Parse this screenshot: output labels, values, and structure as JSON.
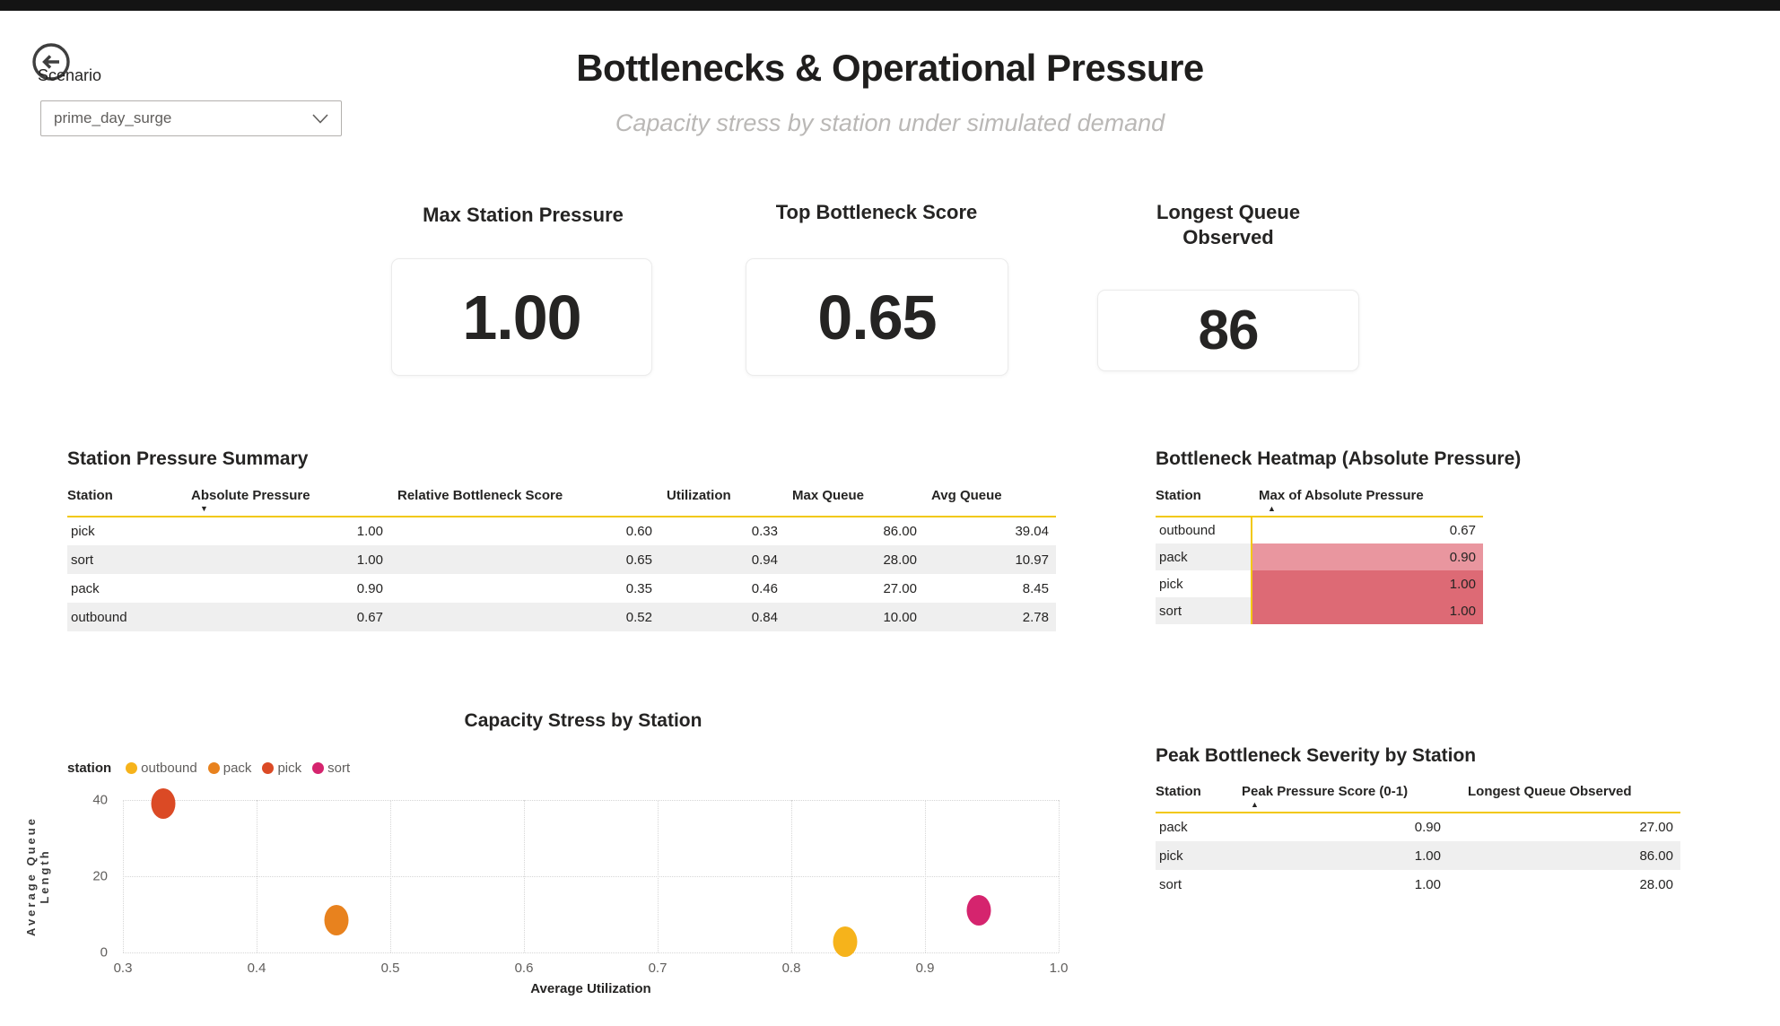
{
  "scenario": {
    "label": "Scenario",
    "value": "prime_day_surge"
  },
  "header": {
    "title": "Bottlenecks & Operational Pressure",
    "subtitle": "Capacity stress by station under simulated demand"
  },
  "icons": {
    "back": "arrow-left-circle-icon",
    "dropdown": "chevron-down-icon",
    "sort_desc": "▼",
    "sort_asc": "▲"
  },
  "accent_color": "#F2C80F",
  "kpis": [
    {
      "title": "Max Station Pressure",
      "value": "1.00"
    },
    {
      "title": "Top Bottleneck Score",
      "value": "0.65"
    },
    {
      "title": "Longest Queue Observed",
      "value": "86"
    }
  ],
  "summary_table": {
    "title": "Station Pressure Summary",
    "columns": [
      "Station",
      "Absolute Pressure",
      "Relative Bottleneck Score",
      "Utilization",
      "Max Queue",
      "Avg Queue"
    ],
    "sort_column": "Absolute Pressure",
    "sort_direction": "desc",
    "rows": [
      [
        "pick",
        "1.00",
        "0.60",
        "0.33",
        "86.00",
        "39.04"
      ],
      [
        "sort",
        "1.00",
        "0.65",
        "0.94",
        "28.00",
        "10.97"
      ],
      [
        "pack",
        "0.90",
        "0.35",
        "0.46",
        "27.00",
        "8.45"
      ],
      [
        "outbound",
        "0.67",
        "0.52",
        "0.84",
        "10.00",
        "2.78"
      ]
    ]
  },
  "heatmap_table": {
    "title": "Bottleneck Heatmap (Absolute Pressure)",
    "columns": [
      "Station",
      "Max of Absolute Pressure"
    ],
    "sort_column": "Max of Absolute Pressure",
    "sort_direction": "asc",
    "rows": [
      {
        "station": "outbound",
        "value": "0.67",
        "cell_color": "#FFFFFF"
      },
      {
        "station": "pack",
        "value": "0.90",
        "cell_color": "#E9969F"
      },
      {
        "station": "pick",
        "value": "1.00",
        "cell_color": "#DD6A75"
      },
      {
        "station": "sort",
        "value": "1.00",
        "cell_color": "#DD6A75"
      }
    ]
  },
  "peak_table": {
    "title": "Peak Bottleneck Severity by Station",
    "columns": [
      "Station",
      "Peak Pressure Score (0-1)",
      "Longest Queue Observed"
    ],
    "sort_column": "Peak Pressure Score (0-1)",
    "sort_direction": "asc",
    "rows": [
      [
        "pack",
        "0.90",
        "27.00"
      ],
      [
        "pick",
        "1.00",
        "86.00"
      ],
      [
        "sort",
        "1.00",
        "28.00"
      ]
    ]
  },
  "chart_data": {
    "type": "scatter",
    "title": "Capacity Stress by Station",
    "xlabel": "Average Utilization",
    "ylabel": "Average Queue Length",
    "legend_label": "station",
    "legend_position": "top-left",
    "grid": true,
    "xlim": [
      0.3,
      1.0
    ],
    "ylim": [
      0,
      40
    ],
    "x_ticks": [
      0.3,
      0.4,
      0.5,
      0.6,
      0.7,
      0.8,
      0.9,
      1.0
    ],
    "x_tick_labels": [
      "0.3",
      "0.4",
      "0.5",
      "0.6",
      "0.7",
      "0.8",
      "0.9",
      "1.0"
    ],
    "y_ticks": [
      0,
      20,
      40
    ],
    "y_tick_labels": [
      "0",
      "20",
      "40"
    ],
    "series": [
      {
        "name": "outbound",
        "color": "#F6B31B",
        "points": [
          {
            "x": 0.84,
            "y": 2.78
          }
        ]
      },
      {
        "name": "pack",
        "color": "#E8821E",
        "points": [
          {
            "x": 0.46,
            "y": 8.45
          }
        ]
      },
      {
        "name": "pick",
        "color": "#DB4A25",
        "points": [
          {
            "x": 0.33,
            "y": 39.04
          }
        ]
      },
      {
        "name": "sort",
        "color": "#D5246E",
        "points": [
          {
            "x": 0.94,
            "y": 10.97
          }
        ]
      }
    ]
  }
}
